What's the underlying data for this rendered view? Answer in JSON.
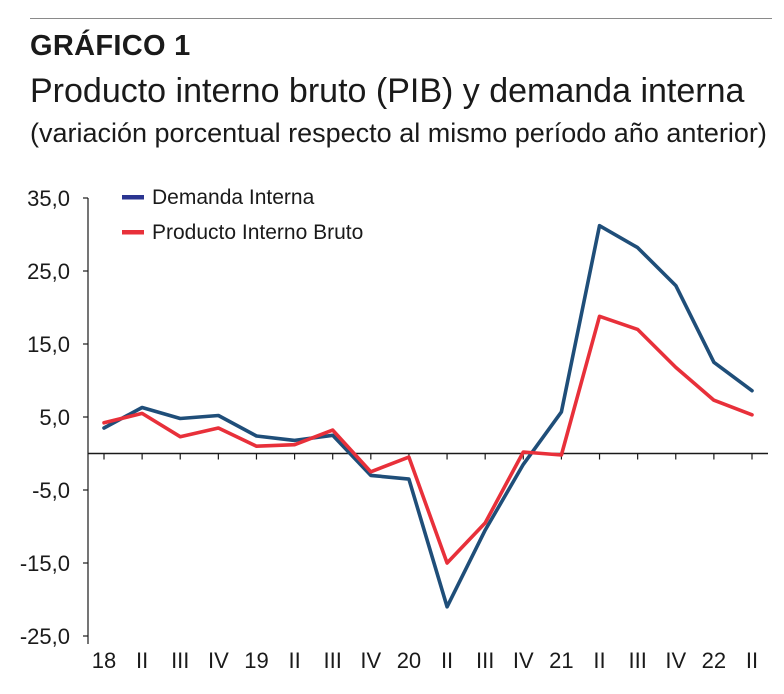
{
  "header": {
    "label": "GRÁFICO 1",
    "title": "Producto interno bruto (PIB) y demanda interna",
    "subtitle": "(variación porcentual respecto al mismo período año anterior)"
  },
  "chart_data": {
    "type": "line",
    "title": "Producto interno bruto (PIB) y demanda interna",
    "subtitle": "(variación porcentual respecto al mismo período año anterior)",
    "categories": [
      "18",
      "II",
      "III",
      "IV",
      "19",
      "II",
      "III",
      "IV",
      "20",
      "II",
      "III",
      "IV",
      "21",
      "II",
      "III",
      "IV",
      "22",
      "II"
    ],
    "ylim": [
      -25,
      35
    ],
    "yticks": [
      35,
      25,
      15,
      5,
      -5,
      -15,
      -25
    ],
    "ytick_labels": [
      "35,0",
      "25,0",
      "15,0",
      "5,0",
      "-5,0",
      "-15,0",
      "-25,0"
    ],
    "xlabel": "",
    "ylabel": "",
    "legend_position": "top-left",
    "series": [
      {
        "name": "Demanda Interna",
        "color": "#1f4e79",
        "values": [
          3.5,
          6.3,
          4.8,
          5.2,
          2.4,
          1.8,
          2.5,
          -3.0,
          -3.5,
          -21.0,
          -10.5,
          -1.5,
          5.7,
          31.2,
          28.2,
          23.0,
          12.5,
          8.6
        ]
      },
      {
        "name": "Producto Interno Bruto",
        "color": "#e8303a",
        "values": [
          4.2,
          5.5,
          2.3,
          3.5,
          1.0,
          1.2,
          3.2,
          -2.5,
          -0.5,
          -15.0,
          -9.5,
          0.2,
          -0.2,
          18.8,
          17.0,
          11.8,
          7.3,
          5.3
        ]
      }
    ],
    "legend_marker_color": "#2b3591"
  }
}
